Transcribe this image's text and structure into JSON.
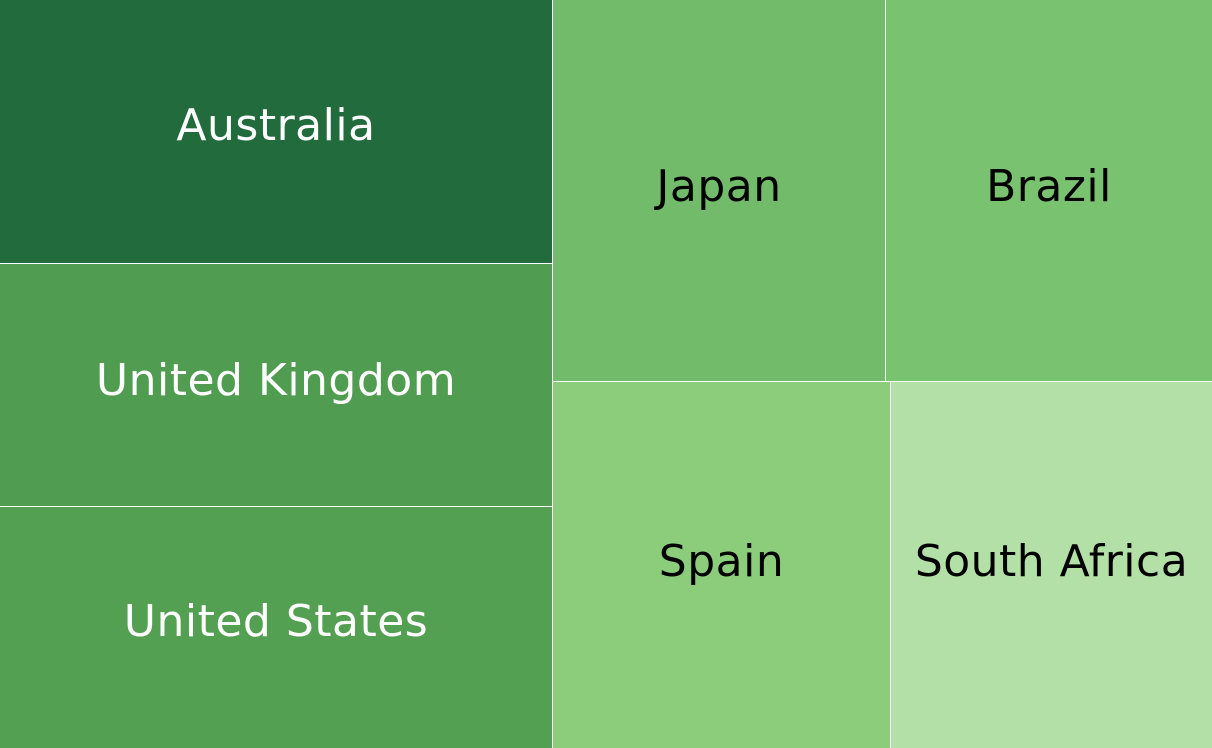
{
  "chart_data": {
    "type": "treemap",
    "categories": [
      "Australia",
      "United Kingdom",
      "United States",
      "Japan",
      "Brazil",
      "Spain",
      "South Africa"
    ],
    "colors": {
      "Australia": "#226b3d",
      "United Kingdom": "#509c51",
      "United States": "#54a053",
      "Japan": "#72bb6a",
      "Brazil": "#79c26f",
      "Spain": "#8bcd7b",
      "South Africa": "#b3e0a7"
    },
    "label_colors": {
      "Australia": "#ffffff",
      "United Kingdom": "#ffffff",
      "United States": "#ffffff",
      "Japan": "#000000",
      "Brazil": "#000000",
      "Spain": "#000000",
      "South Africa": "#000000"
    }
  }
}
